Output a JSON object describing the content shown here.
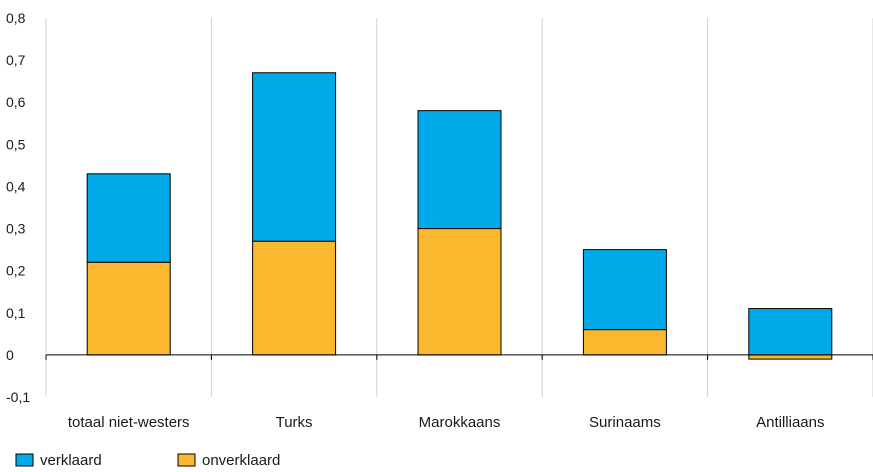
{
  "chart_data": {
    "type": "bar",
    "stacked": true,
    "categories": [
      "totaal niet-westers",
      "Turks",
      "Marokkaans",
      "Surinaams",
      "Antilliaans"
    ],
    "series": [
      {
        "name": "verklaard",
        "values": [
          0.21,
          0.4,
          0.28,
          0.19,
          0.11
        ],
        "color": "#00a9e8"
      },
      {
        "name": "onverklaard",
        "values": [
          0.22,
          0.27,
          0.3,
          0.06,
          -0.01
        ],
        "color": "#fbb72d"
      }
    ],
    "ylim": [
      -0.1,
      0.8
    ],
    "yticks": [
      -0.1,
      0,
      0.1,
      0.2,
      0.3,
      0.4,
      0.5,
      0.6,
      0.7,
      0.8
    ],
    "ytick_labels": [
      "-0,1",
      "0",
      "0,1",
      "0,2",
      "0,3",
      "0,4",
      "0,5",
      "0,6",
      "0,7",
      "0,8"
    ],
    "grid": "vertical category separators",
    "legend_position": "bottom-left"
  }
}
